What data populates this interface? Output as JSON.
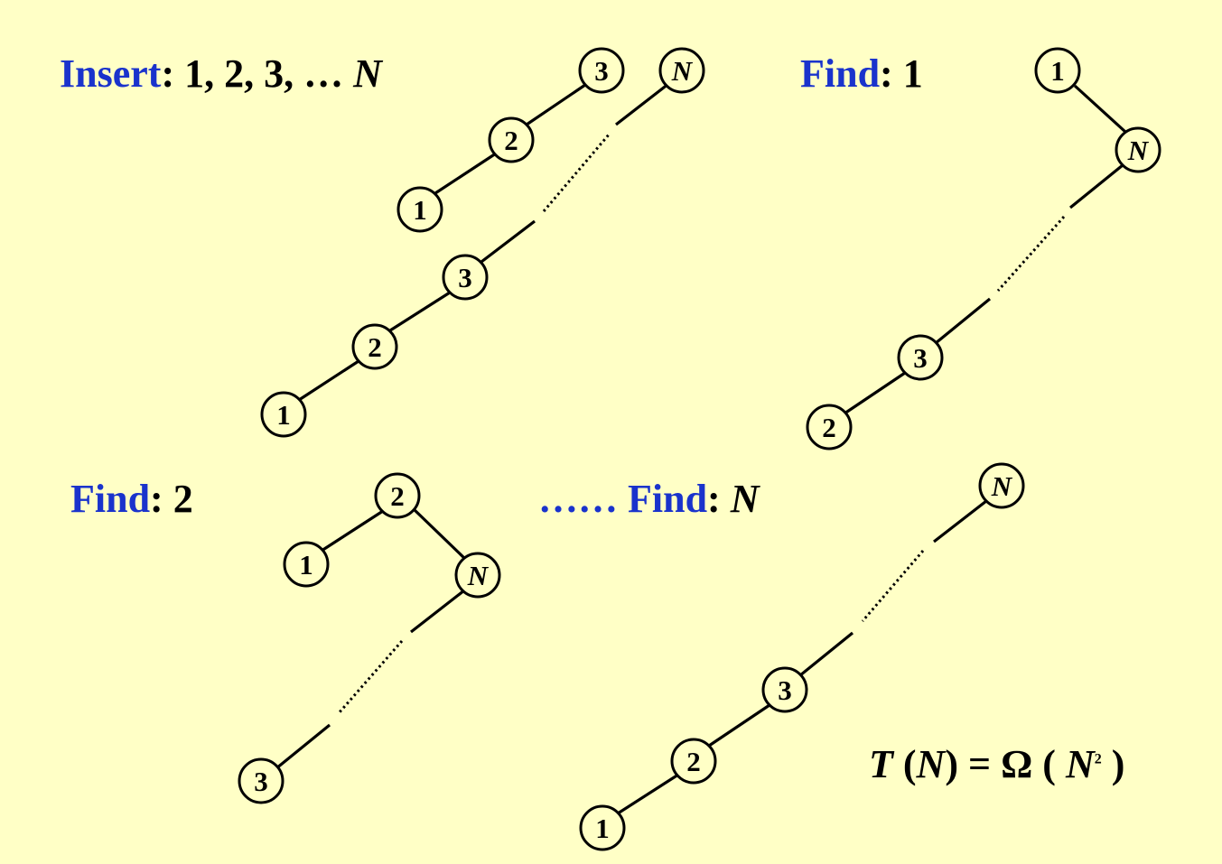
{
  "labels": {
    "insert": {
      "keyword": "Insert",
      "rest": ": 1, 2, 3, … ",
      "var": "N"
    },
    "find1": {
      "keyword": "Find",
      "rest": ": 1"
    },
    "find2": {
      "keyword": "Find",
      "rest": ": 2"
    },
    "findN": {
      "prefix": "…… ",
      "keyword": "Find",
      "rest": ": ",
      "var": "N"
    }
  },
  "formula": {
    "t": "T",
    "open": " (",
    "n": "N",
    "close": ") = ",
    "omega": "Ω",
    "paren": " ( ",
    "n2": "N",
    "sup": "2",
    "end": " )"
  },
  "colors": {
    "background": "#FFFFC6",
    "keyword": "#1A33CC",
    "text": "#000000"
  },
  "diagrams": [
    {
      "name": "insert-tree-small",
      "nodes": [
        "1",
        "2",
        "3",
        "N"
      ]
    },
    {
      "name": "insert-tree-large",
      "nodes": [
        "1",
        "2",
        "3"
      ]
    },
    {
      "name": "find1-tree",
      "nodes": [
        "1",
        "N",
        "3",
        "2"
      ]
    },
    {
      "name": "find2-tree",
      "nodes": [
        "2",
        "1",
        "N",
        "3"
      ]
    },
    {
      "name": "findN-tree",
      "nodes": [
        "N",
        "3",
        "2",
        "1"
      ]
    }
  ]
}
